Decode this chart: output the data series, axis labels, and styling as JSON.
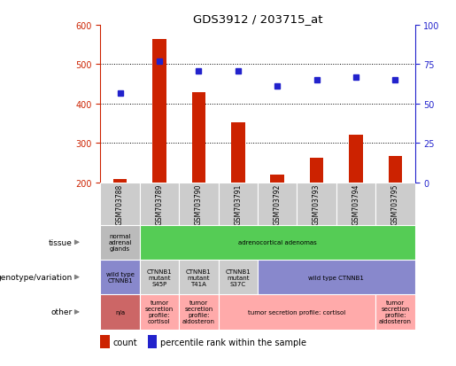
{
  "title": "GDS3912 / 203715_at",
  "samples": [
    "GSM703788",
    "GSM703789",
    "GSM703790",
    "GSM703791",
    "GSM703792",
    "GSM703793",
    "GSM703794",
    "GSM703795"
  ],
  "count_values": [
    210,
    565,
    430,
    352,
    220,
    262,
    322,
    268
  ],
  "count_baseline": 200,
  "percentile_values": [
    57,
    77,
    71,
    71,
    61,
    65,
    67,
    65
  ],
  "ylim_left": [
    200,
    600
  ],
  "ylim_right": [
    0,
    100
  ],
  "yticks_left": [
    200,
    300,
    400,
    500,
    600
  ],
  "yticks_right": [
    0,
    25,
    50,
    75,
    100
  ],
  "bar_color": "#cc2200",
  "dot_color": "#2222cc",
  "sample_box_color": "#cccccc",
  "tissue_row": {
    "label": "tissue",
    "cells": [
      {
        "text": "normal\nadrenal\nglands",
        "colspan": 1,
        "color": "#bbbbbb"
      },
      {
        "text": "adrenocortical adenomas",
        "colspan": 7,
        "color": "#55cc55"
      }
    ]
  },
  "genotype_row": {
    "label": "genotype/variation",
    "cells": [
      {
        "text": "wild type\nCTNNB1",
        "colspan": 1,
        "color": "#8888cc"
      },
      {
        "text": "CTNNB1\nmutant\nS45P",
        "colspan": 1,
        "color": "#cccccc"
      },
      {
        "text": "CTNNB1\nmutant\nT41A",
        "colspan": 1,
        "color": "#cccccc"
      },
      {
        "text": "CTNNB1\nmutant\nS37C",
        "colspan": 1,
        "color": "#cccccc"
      },
      {
        "text": "wild type CTNNB1",
        "colspan": 4,
        "color": "#8888cc"
      }
    ]
  },
  "other_row": {
    "label": "other",
    "cells": [
      {
        "text": "n/a",
        "colspan": 1,
        "color": "#cc6666"
      },
      {
        "text": "tumor\nsecretion\nprofile:\ncortisol",
        "colspan": 1,
        "color": "#ffaaaa"
      },
      {
        "text": "tumor\nsecretion\nprofile:\naldosteron",
        "colspan": 1,
        "color": "#ffaaaa"
      },
      {
        "text": "tumor secretion profile: cortisol",
        "colspan": 4,
        "color": "#ffaaaa"
      },
      {
        "text": "tumor\nsecretion\nprofile:\naldosteron",
        "colspan": 1,
        "color": "#ffaaaa"
      }
    ]
  },
  "legend_items": [
    {
      "label": "count",
      "color": "#cc2200"
    },
    {
      "label": "percentile rank within the sample",
      "color": "#2222cc"
    }
  ]
}
